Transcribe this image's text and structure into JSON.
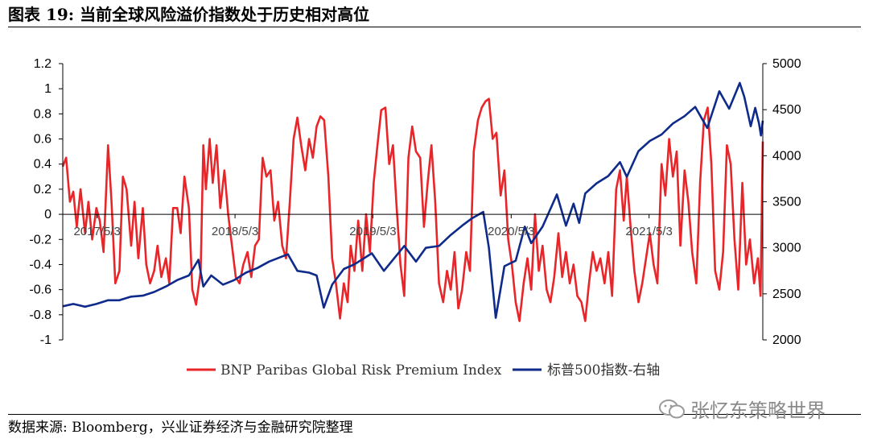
{
  "title": "图表 19:  当前全球风险溢价指数处于历史相对高位",
  "source": "数据来源:  Bloomberg，兴业证券经济与金融研究院整理",
  "watermark": {
    "text": "张忆东策略世界",
    "icon": "wechat-icon"
  },
  "colors": {
    "series_red": "#e8262a",
    "series_blue": "#0e2a8a"
  },
  "chart_data": {
    "type": "line",
    "title": "",
    "x_ticks": [
      "2017/5/3",
      "2018/5/3",
      "2019/5/3",
      "2020/5/3",
      "2021/5/3"
    ],
    "x_range": [
      "2017-02-01",
      "2022-02-28"
    ],
    "y_left": {
      "range": [
        -1,
        1.2
      ],
      "ticks": [
        "-1",
        "-0.8",
        "-0.6",
        "-0.4",
        "-0.2",
        "0",
        "0.2",
        "0.4",
        "0.6",
        "0.8",
        "1",
        "1.2"
      ]
    },
    "y_right": {
      "range": [
        2000,
        5000
      ],
      "ticks": [
        "2000",
        "2500",
        "3000",
        "3500",
        "4000",
        "4500",
        "5000"
      ]
    },
    "legend_position": "bottom",
    "series": [
      {
        "name": "BNP Paribas Global Risk Premium Index",
        "axis": "left",
        "color": "#e8262a",
        "points": [
          [
            "2017-02-01",
            0.38
          ],
          [
            "2017-02-10",
            0.45
          ],
          [
            "2017-02-20",
            0.1
          ],
          [
            "2017-03-01",
            0.18
          ],
          [
            "2017-03-10",
            -0.1
          ],
          [
            "2017-03-20",
            0.2
          ],
          [
            "2017-04-01",
            -0.15
          ],
          [
            "2017-04-10",
            0.1
          ],
          [
            "2017-04-20",
            -0.2
          ],
          [
            "2017-05-01",
            0.05
          ],
          [
            "2017-05-10",
            -0.05
          ],
          [
            "2017-05-20",
            -0.3
          ],
          [
            "2017-06-01",
            0.55
          ],
          [
            "2017-06-10",
            0.1
          ],
          [
            "2017-06-20",
            -0.55
          ],
          [
            "2017-07-01",
            -0.45
          ],
          [
            "2017-07-10",
            0.3
          ],
          [
            "2017-07-20",
            0.2
          ],
          [
            "2017-08-01",
            -0.25
          ],
          [
            "2017-08-10",
            0.1
          ],
          [
            "2017-08-20",
            -0.35
          ],
          [
            "2017-09-01",
            0.05
          ],
          [
            "2017-09-10",
            -0.4
          ],
          [
            "2017-09-20",
            -0.55
          ],
          [
            "2017-10-01",
            -0.45
          ],
          [
            "2017-10-10",
            -0.25
          ],
          [
            "2017-10-20",
            -0.5
          ],
          [
            "2017-11-01",
            -0.35
          ],
          [
            "2017-11-10",
            -0.55
          ],
          [
            "2017-11-20",
            0.05
          ],
          [
            "2017-12-01",
            0.05
          ],
          [
            "2017-12-10",
            -0.15
          ],
          [
            "2017-12-20",
            0.3
          ],
          [
            "2018-01-01",
            0.05
          ],
          [
            "2018-01-10",
            -0.6
          ],
          [
            "2018-01-20",
            -0.72
          ],
          [
            "2018-02-01",
            -0.45
          ],
          [
            "2018-02-08",
            0.55
          ],
          [
            "2018-02-15",
            0.2
          ],
          [
            "2018-02-25",
            0.6
          ],
          [
            "2018-03-05",
            0.25
          ],
          [
            "2018-03-15",
            0.55
          ],
          [
            "2018-03-25",
            0.05
          ],
          [
            "2018-04-05",
            0.35
          ],
          [
            "2018-04-15",
            0.0
          ],
          [
            "2018-04-25",
            -0.25
          ],
          [
            "2018-05-05",
            -0.5
          ],
          [
            "2018-05-15",
            -0.55
          ],
          [
            "2018-05-25",
            -0.4
          ],
          [
            "2018-06-05",
            -0.3
          ],
          [
            "2018-06-15",
            -0.5
          ],
          [
            "2018-06-25",
            -0.25
          ],
          [
            "2018-07-05",
            -0.2
          ],
          [
            "2018-07-15",
            0.45
          ],
          [
            "2018-07-25",
            0.3
          ],
          [
            "2018-08-05",
            0.35
          ],
          [
            "2018-08-15",
            -0.05
          ],
          [
            "2018-08-25",
            0.1
          ],
          [
            "2018-09-05",
            -0.25
          ],
          [
            "2018-09-15",
            -0.35
          ],
          [
            "2018-09-25",
            0.1
          ],
          [
            "2018-10-05",
            0.6
          ],
          [
            "2018-10-15",
            0.77
          ],
          [
            "2018-10-25",
            0.55
          ],
          [
            "2018-11-05",
            0.35
          ],
          [
            "2018-11-15",
            0.6
          ],
          [
            "2018-11-25",
            0.45
          ],
          [
            "2018-12-05",
            0.7
          ],
          [
            "2018-12-15",
            0.78
          ],
          [
            "2018-12-25",
            0.75
          ],
          [
            "2019-01-05",
            0.3
          ],
          [
            "2019-01-15",
            -0.35
          ],
          [
            "2019-01-25",
            -0.55
          ],
          [
            "2019-02-05",
            -0.83
          ],
          [
            "2019-02-15",
            -0.55
          ],
          [
            "2019-02-25",
            -0.7
          ],
          [
            "2019-03-05",
            -0.25
          ],
          [
            "2019-03-15",
            -0.45
          ],
          [
            "2019-03-25",
            -0.05
          ],
          [
            "2019-04-05",
            -0.45
          ],
          [
            "2019-04-15",
            0.0
          ],
          [
            "2019-04-25",
            -0.3
          ],
          [
            "2019-05-05",
            0.25
          ],
          [
            "2019-05-15",
            0.55
          ],
          [
            "2019-05-25",
            0.83
          ],
          [
            "2019-06-05",
            0.85
          ],
          [
            "2019-06-15",
            0.4
          ],
          [
            "2019-06-25",
            0.55
          ],
          [
            "2019-07-05",
            0.05
          ],
          [
            "2019-07-15",
            -0.4
          ],
          [
            "2019-07-25",
            -0.65
          ],
          [
            "2019-08-05",
            0.45
          ],
          [
            "2019-08-15",
            0.7
          ],
          [
            "2019-08-25",
            0.5
          ],
          [
            "2019-09-05",
            0.45
          ],
          [
            "2019-09-15",
            -0.1
          ],
          [
            "2019-09-25",
            0.25
          ],
          [
            "2019-10-05",
            0.55
          ],
          [
            "2019-10-15",
            0.1
          ],
          [
            "2019-10-25",
            -0.55
          ],
          [
            "2019-11-05",
            -0.7
          ],
          [
            "2019-11-15",
            -0.45
          ],
          [
            "2019-11-25",
            -0.6
          ],
          [
            "2019-12-05",
            -0.3
          ],
          [
            "2019-12-15",
            -0.75
          ],
          [
            "2019-12-25",
            -0.6
          ],
          [
            "2020-01-05",
            -0.3
          ],
          [
            "2020-01-15",
            -0.45
          ],
          [
            "2020-01-25",
            0.5
          ],
          [
            "2020-02-05",
            0.75
          ],
          [
            "2020-02-15",
            0.85
          ],
          [
            "2020-02-25",
            0.9
          ],
          [
            "2020-03-05",
            0.92
          ],
          [
            "2020-03-15",
            0.6
          ],
          [
            "2020-03-25",
            0.65
          ],
          [
            "2020-04-05",
            0.15
          ],
          [
            "2020-04-15",
            0.35
          ],
          [
            "2020-04-25",
            -0.2
          ],
          [
            "2020-05-05",
            -0.4
          ],
          [
            "2020-05-15",
            -0.7
          ],
          [
            "2020-05-25",
            -0.85
          ],
          [
            "2020-06-05",
            -0.55
          ],
          [
            "2020-06-15",
            -0.35
          ],
          [
            "2020-06-25",
            -0.6
          ],
          [
            "2020-07-05",
            0.0
          ],
          [
            "2020-07-15",
            -0.45
          ],
          [
            "2020-07-25",
            -0.25
          ],
          [
            "2020-08-05",
            -0.6
          ],
          [
            "2020-08-15",
            -0.7
          ],
          [
            "2020-08-25",
            -0.5
          ],
          [
            "2020-09-05",
            -0.15
          ],
          [
            "2020-09-15",
            -0.5
          ],
          [
            "2020-09-25",
            -0.3
          ],
          [
            "2020-10-05",
            -0.55
          ],
          [
            "2020-10-15",
            -0.4
          ],
          [
            "2020-10-25",
            -0.65
          ],
          [
            "2020-11-05",
            -0.7
          ],
          [
            "2020-11-15",
            -0.85
          ],
          [
            "2020-11-25",
            -0.55
          ],
          [
            "2020-12-05",
            -0.3
          ],
          [
            "2020-12-15",
            -0.45
          ],
          [
            "2020-12-25",
            -0.35
          ],
          [
            "2021-01-05",
            -0.55
          ],
          [
            "2021-01-15",
            -0.3
          ],
          [
            "2021-01-25",
            -0.65
          ],
          [
            "2021-02-05",
            0.2
          ],
          [
            "2021-02-15",
            0.35
          ],
          [
            "2021-02-25",
            -0.05
          ],
          [
            "2021-03-05",
            0.3
          ],
          [
            "2021-03-15",
            -0.1
          ],
          [
            "2021-03-25",
            -0.45
          ],
          [
            "2021-04-05",
            -0.7
          ],
          [
            "2021-04-15",
            -0.55
          ],
          [
            "2021-04-25",
            -0.35
          ],
          [
            "2021-05-05",
            -0.15
          ],
          [
            "2021-05-15",
            -0.4
          ],
          [
            "2021-05-25",
            -0.55
          ],
          [
            "2021-06-05",
            0.4
          ],
          [
            "2021-06-15",
            0.15
          ],
          [
            "2021-06-25",
            0.6
          ],
          [
            "2021-07-05",
            0.3
          ],
          [
            "2021-07-15",
            0.5
          ],
          [
            "2021-07-25",
            -0.25
          ],
          [
            "2021-08-05",
            0.35
          ],
          [
            "2021-08-15",
            0.1
          ],
          [
            "2021-08-25",
            -0.3
          ],
          [
            "2021-09-05",
            -0.55
          ],
          [
            "2021-09-15",
            0.25
          ],
          [
            "2021-09-25",
            0.75
          ],
          [
            "2021-10-05",
            0.85
          ],
          [
            "2021-10-15",
            0.4
          ],
          [
            "2021-10-25",
            -0.45
          ],
          [
            "2021-11-05",
            -0.6
          ],
          [
            "2021-11-15",
            -0.3
          ],
          [
            "2021-11-25",
            0.55
          ],
          [
            "2021-12-05",
            0.4
          ],
          [
            "2021-12-15",
            -0.2
          ],
          [
            "2021-12-25",
            -0.6
          ],
          [
            "2022-01-05",
            0.25
          ],
          [
            "2022-01-15",
            -0.4
          ],
          [
            "2022-01-25",
            -0.2
          ],
          [
            "2022-02-05",
            -0.55
          ],
          [
            "2022-02-15",
            -0.35
          ],
          [
            "2022-02-22",
            -0.65
          ],
          [
            "2022-02-28",
            0.58
          ]
        ]
      },
      {
        "name": "标普500指数-右轴",
        "axis": "right",
        "color": "#0e2a8a",
        "points": [
          [
            "2017-02-01",
            2365
          ],
          [
            "2017-03-01",
            2390
          ],
          [
            "2017-04-01",
            2360
          ],
          [
            "2017-05-01",
            2390
          ],
          [
            "2017-06-01",
            2430
          ],
          [
            "2017-07-01",
            2430
          ],
          [
            "2017-08-01",
            2470
          ],
          [
            "2017-09-01",
            2480
          ],
          [
            "2017-10-01",
            2520
          ],
          [
            "2017-11-01",
            2580
          ],
          [
            "2017-12-01",
            2650
          ],
          [
            "2018-01-01",
            2700
          ],
          [
            "2018-01-26",
            2870
          ],
          [
            "2018-02-08",
            2580
          ],
          [
            "2018-03-01",
            2700
          ],
          [
            "2018-04-01",
            2600
          ],
          [
            "2018-05-01",
            2650
          ],
          [
            "2018-06-01",
            2730
          ],
          [
            "2018-07-01",
            2780
          ],
          [
            "2018-08-01",
            2850
          ],
          [
            "2018-09-20",
            2930
          ],
          [
            "2018-10-15",
            2750
          ],
          [
            "2018-11-15",
            2730
          ],
          [
            "2018-12-05",
            2700
          ],
          [
            "2018-12-24",
            2350
          ],
          [
            "2019-01-15",
            2600
          ],
          [
            "2019-02-15",
            2770
          ],
          [
            "2019-03-15",
            2820
          ],
          [
            "2019-04-30",
            2940
          ],
          [
            "2019-06-01",
            2750
          ],
          [
            "2019-07-25",
            3020
          ],
          [
            "2019-08-25",
            2850
          ],
          [
            "2019-09-20",
            3000
          ],
          [
            "2019-10-25",
            3020
          ],
          [
            "2019-11-25",
            3140
          ],
          [
            "2019-12-25",
            3240
          ],
          [
            "2020-01-20",
            3320
          ],
          [
            "2020-02-19",
            3390
          ],
          [
            "2020-03-05",
            3000
          ],
          [
            "2020-03-23",
            2240
          ],
          [
            "2020-04-15",
            2800
          ],
          [
            "2020-05-15",
            2860
          ],
          [
            "2020-06-08",
            3230
          ],
          [
            "2020-06-25",
            3050
          ],
          [
            "2020-07-25",
            3230
          ],
          [
            "2020-09-01",
            3580
          ],
          [
            "2020-09-25",
            3240
          ],
          [
            "2020-10-15",
            3480
          ],
          [
            "2020-10-30",
            3270
          ],
          [
            "2020-11-15",
            3590
          ],
          [
            "2020-12-15",
            3700
          ],
          [
            "2021-01-15",
            3780
          ],
          [
            "2021-02-15",
            3930
          ],
          [
            "2021-03-05",
            3770
          ],
          [
            "2021-04-05",
            4050
          ],
          [
            "2021-05-05",
            4160
          ],
          [
            "2021-06-05",
            4230
          ],
          [
            "2021-07-05",
            4350
          ],
          [
            "2021-08-05",
            4430
          ],
          [
            "2021-09-02",
            4530
          ],
          [
            "2021-10-04",
            4300
          ],
          [
            "2021-11-05",
            4700
          ],
          [
            "2021-12-01",
            4510
          ],
          [
            "2021-12-29",
            4790
          ],
          [
            "2022-01-10",
            4640
          ],
          [
            "2022-01-27",
            4320
          ],
          [
            "2022-02-08",
            4520
          ],
          [
            "2022-02-18",
            4350
          ],
          [
            "2022-02-23",
            4220
          ],
          [
            "2022-02-28",
            4380
          ]
        ]
      }
    ]
  }
}
